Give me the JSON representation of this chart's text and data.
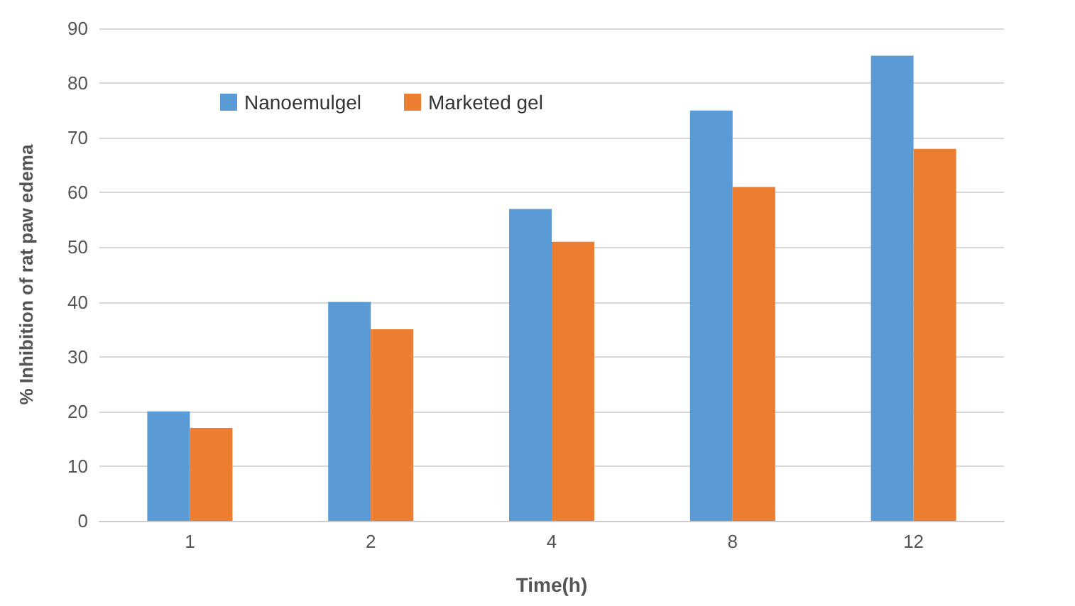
{
  "chart_data": {
    "type": "bar",
    "xlabel": "Time(h)",
    "ylabel": "% Inhibition of rat paw edema",
    "categories": [
      "1",
      "2",
      "4",
      "8",
      "12"
    ],
    "series": [
      {
        "name": "Nanoemulgel",
        "color": "#5b9bd5",
        "values": [
          20,
          40,
          57,
          75,
          85
        ]
      },
      {
        "name": "Marketed gel",
        "color": "#ed7d31",
        "values": [
          17,
          35,
          51,
          61,
          68
        ]
      }
    ],
    "ylim": [
      0,
      90
    ],
    "yticks": [
      0,
      10,
      20,
      30,
      40,
      50,
      60,
      70,
      80,
      90
    ],
    "grid": "y",
    "legend": "top left"
  }
}
